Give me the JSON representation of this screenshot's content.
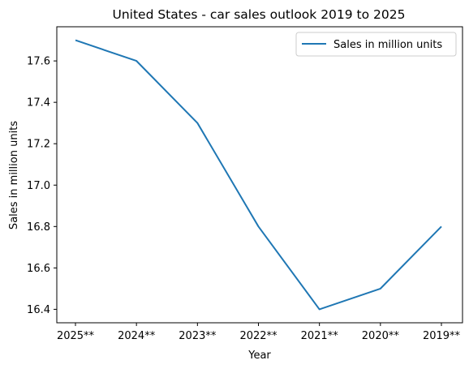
{
  "chart_data": {
    "type": "line",
    "title": "United States - car sales outlook 2019 to 2025",
    "xlabel": "Year",
    "ylabel": "Sales in million units",
    "categories": [
      "2025**",
      "2024**",
      "2023**",
      "2022**",
      "2021**",
      "2020**",
      "2019**"
    ],
    "series": [
      {
        "name": "Sales in million units",
        "values": [
          17.7,
          17.6,
          17.3,
          16.8,
          16.4,
          16.5,
          16.8
        ],
        "color": "#1f77b4"
      }
    ],
    "yticks": [
      16.4,
      16.6,
      16.8,
      17.0,
      17.2,
      17.4,
      17.6
    ],
    "ytick_labels": [
      "16.4",
      "16.6",
      "16.8",
      "17.0",
      "17.2",
      "17.4",
      "17.6"
    ],
    "ylim": [
      16.335,
      17.765
    ],
    "grid": false,
    "legend_position": "top-right"
  }
}
